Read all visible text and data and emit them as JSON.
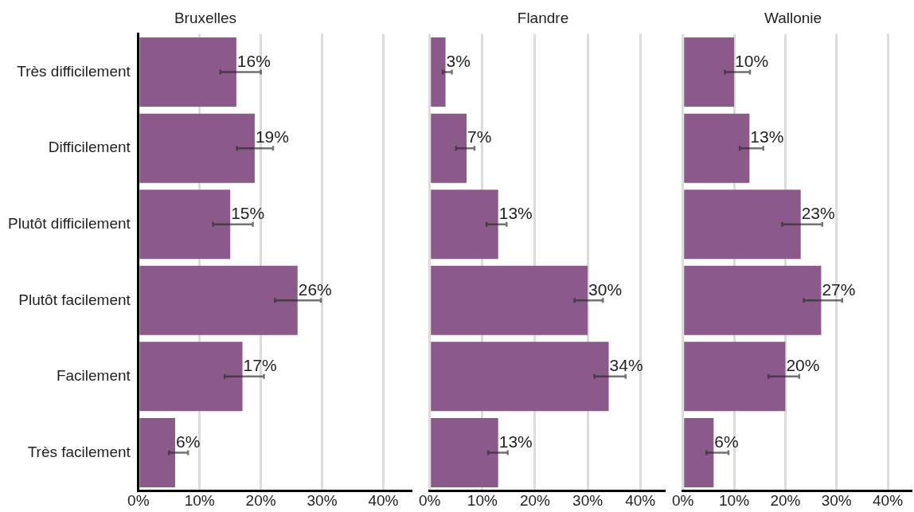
{
  "chart_data": [
    {
      "type": "bar",
      "orientation": "horizontal",
      "title": "Bruxelles",
      "categories": [
        "Très difficilement",
        "Difficilement",
        "Plutôt difficilement",
        "Plutôt facilement",
        "Facilement",
        "Très facilement"
      ],
      "values": [
        16,
        19,
        15,
        26,
        17,
        6
      ],
      "value_labels": [
        "16%",
        "19%",
        "15%",
        "26%",
        "17%",
        "6%"
      ],
      "errors": [
        [
          13.4,
          20.0
        ],
        [
          16.1,
          22.0
        ],
        [
          12.2,
          18.7
        ],
        [
          22.3,
          29.8
        ],
        [
          14.1,
          20.5
        ],
        [
          5.0,
          8.1
        ]
      ],
      "color": "#8b5a8a",
      "xlim": [
        0,
        44.5
      ],
      "xticks": [
        {
          "value": 0,
          "label": "0%"
        },
        {
          "value": 10,
          "label": "10%"
        },
        {
          "value": 20,
          "label": "20%"
        },
        {
          "value": 30,
          "label": "30%"
        },
        {
          "value": 40,
          "label": "40%"
        }
      ],
      "grid": "x",
      "legend": false
    },
    {
      "type": "bar",
      "orientation": "horizontal",
      "title": "Flandre",
      "categories": [
        null,
        null,
        null,
        null,
        null,
        null
      ],
      "values": [
        3,
        7,
        13,
        30,
        34,
        13
      ],
      "value_labels": [
        "3%",
        "7%",
        "13%",
        "30%",
        "34%",
        "13%"
      ],
      "errors": [
        [
          2.5,
          4.2
        ],
        [
          5.0,
          8.5
        ],
        [
          10.8,
          14.6
        ],
        [
          27.5,
          32.9
        ],
        [
          31.3,
          37.2
        ],
        [
          11.1,
          14.8
        ]
      ],
      "color": "#8b5a8a",
      "xlim": [
        0,
        44.5
      ],
      "xticks": [
        {
          "value": 0,
          "label": "0%"
        },
        {
          "value": 10,
          "label": "10%"
        },
        {
          "value": 20,
          "label": "20%"
        },
        {
          "value": 30,
          "label": "30%"
        },
        {
          "value": 40,
          "label": "40%"
        }
      ],
      "grid": "x",
      "legend": false,
      "tick_labels": "x"
    },
    {
      "type": "bar",
      "orientation": "horizontal",
      "title": "Wallonie",
      "categories": [
        null,
        null,
        null,
        null,
        null,
        null
      ],
      "values": [
        10,
        13,
        23,
        27,
        20,
        6
      ],
      "value_labels": [
        "10%",
        "13%",
        "23%",
        "27%",
        "20%",
        "6%"
      ],
      "errors": [
        [
          8.2,
          13.1
        ],
        [
          11.1,
          15.7
        ],
        [
          19.4,
          27.2
        ],
        [
          23.6,
          31.1
        ],
        [
          16.7,
          22.7
        ],
        [
          4.6,
          8.9
        ]
      ],
      "color": "#8b5a8a",
      "xlim": [
        0,
        44.5
      ],
      "xticks": [
        {
          "value": 0,
          "label": "0%"
        },
        {
          "value": 10,
          "label": "10%"
        },
        {
          "value": 20,
          "label": "20%"
        },
        {
          "value": 30,
          "label": "30%"
        },
        {
          "value": 40,
          "label": "40%"
        }
      ],
      "grid": "x",
      "legend": false,
      "tick_labels": "x"
    }
  ]
}
